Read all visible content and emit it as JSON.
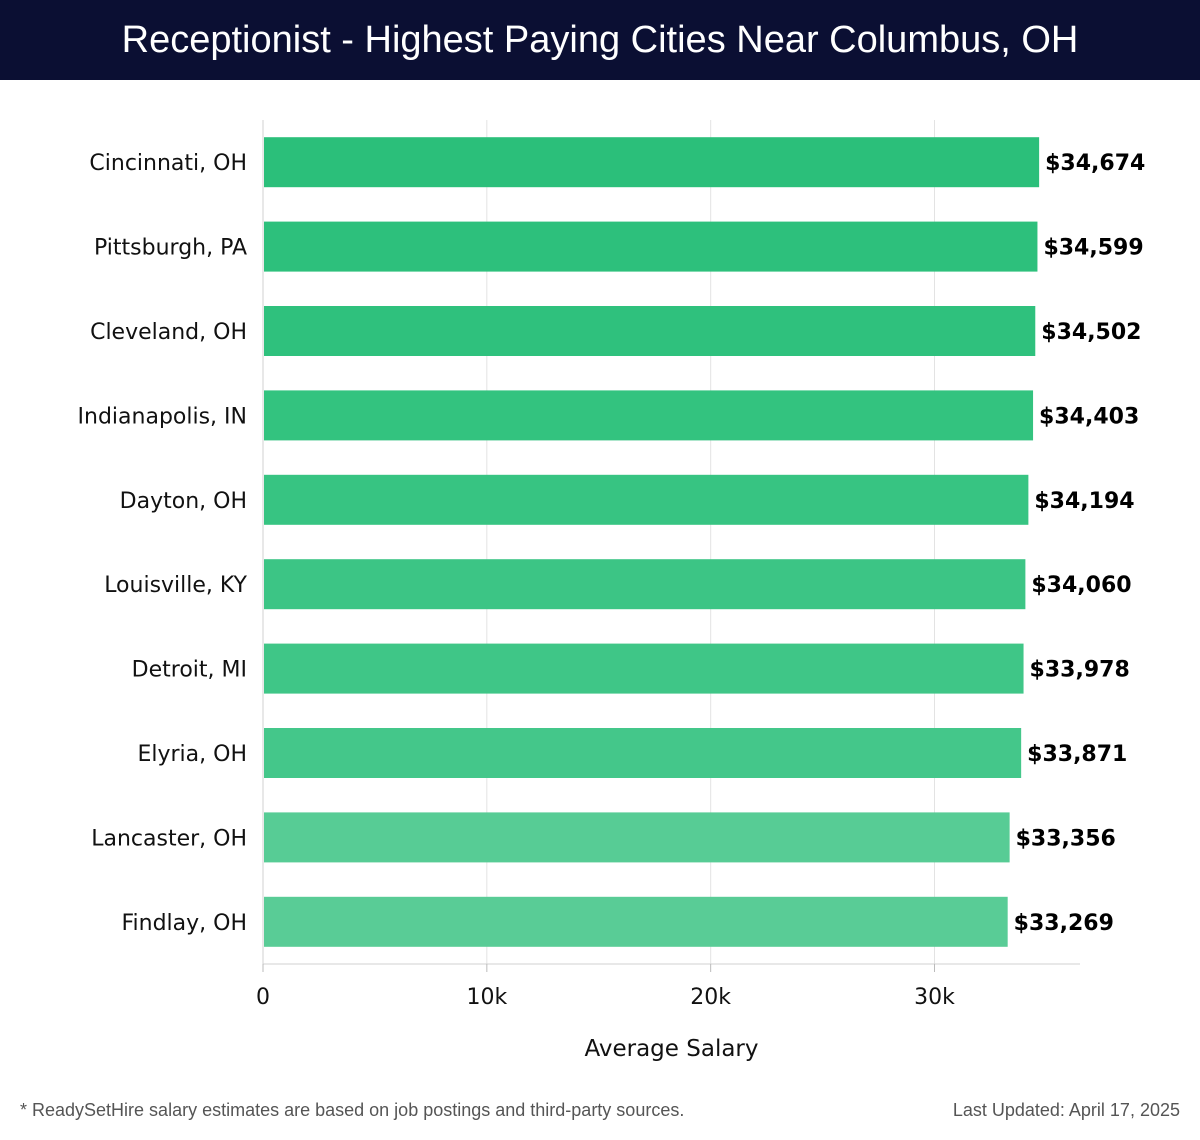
{
  "header": {
    "title": "Receptionist - Highest Paying Cities Near Columbus, OH",
    "background": "#0b0f33"
  },
  "chart_data": {
    "type": "bar",
    "orientation": "horizontal",
    "title": "Receptionist - Highest Paying Cities Near Columbus, OH",
    "xlabel": "Average Salary",
    "ylabel": "",
    "categories": [
      "Cincinnati, OH",
      "Pittsburgh, PA",
      "Cleveland, OH",
      "Indianapolis, IN",
      "Dayton, OH",
      "Louisville, KY",
      "Detroit, MI",
      "Elyria, OH",
      "Lancaster, OH",
      "Findlay, OH"
    ],
    "values": [
      34674,
      34599,
      34502,
      34403,
      34194,
      34060,
      33978,
      33871,
      33356,
      33269
    ],
    "value_labels": [
      "$34,674",
      "$34,599",
      "$34,502",
      "$34,403",
      "$34,194",
      "$34,060",
      "$33,978",
      "$33,871",
      "$33,356",
      "$33,269"
    ],
    "bar_colors": [
      "#2bbf7a",
      "#2dc07c",
      "#2fc17d",
      "#33c37f",
      "#37c482",
      "#3cc585",
      "#3fc687",
      "#44c78a",
      "#57cc95",
      "#59cc96"
    ],
    "xticks": [
      0,
      10000,
      20000,
      30000
    ],
    "xtick_labels": [
      "0",
      "10k",
      "20k",
      "30k"
    ],
    "xlim": [
      0,
      36500
    ],
    "grid": true
  },
  "footer": {
    "disclaimer": "* ReadySetHire salary estimates are based on job postings and third-party sources.",
    "updated": "Last Updated: April 17, 2025"
  }
}
